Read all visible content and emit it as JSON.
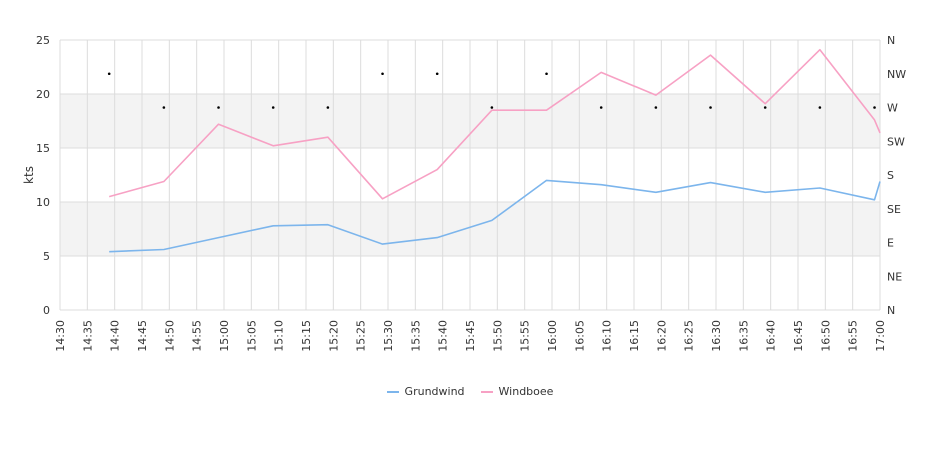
{
  "chart_data": {
    "type": "line",
    "ylabel": "kts",
    "ylim": [
      0,
      25
    ],
    "y_ticks": [
      "0",
      "5",
      "10",
      "15",
      "20",
      "25"
    ],
    "y2_ticks": [
      "N",
      "NE",
      "E",
      "SE",
      "S",
      "SW",
      "W",
      "NW",
      "N"
    ],
    "x_ticks": [
      "14:30",
      "14:35",
      "14:40",
      "14:45",
      "14:50",
      "14:55",
      "15:00",
      "15:05",
      "15:10",
      "15:15",
      "15:20",
      "15:25",
      "15:30",
      "15:35",
      "15:40",
      "15:45",
      "15:50",
      "15:55",
      "16:00",
      "16:05",
      "16:10",
      "16:15",
      "16:20",
      "16:25",
      "16:30",
      "16:35",
      "16:40",
      "16:45",
      "16:50",
      "16:55",
      "17:00"
    ],
    "xlim": [
      "14:30",
      "17:00"
    ],
    "grid": true,
    "legend_position": "bottom",
    "series": [
      {
        "name": "Grundwind",
        "color": "#7cb5ec",
        "x": [
          "14:39",
          "14:49",
          "14:59",
          "15:09",
          "15:19",
          "15:29",
          "15:39",
          "15:49",
          "15:59",
          "16:09",
          "16:19",
          "16:29",
          "16:39",
          "16:49",
          "16:59",
          "17:00"
        ],
        "values": [
          5.4,
          5.6,
          6.7,
          7.8,
          7.9,
          6.1,
          6.7,
          8.3,
          12.0,
          11.6,
          10.9,
          11.8,
          10.9,
          11.3,
          10.2,
          11.9
        ]
      },
      {
        "name": "Windboee",
        "color": "#f7a1c4",
        "x": [
          "14:39",
          "14:49",
          "14:59",
          "15:09",
          "15:19",
          "15:29",
          "15:39",
          "15:49",
          "15:59",
          "16:09",
          "16:19",
          "16:29",
          "16:39",
          "16:49",
          "16:59",
          "17:00"
        ],
        "values": [
          10.5,
          11.9,
          17.2,
          15.2,
          16.0,
          10.3,
          13.0,
          18.5,
          18.5,
          22.0,
          19.9,
          23.6,
          19.1,
          24.1,
          17.6,
          16.4
        ]
      }
    ],
    "direction": {
      "x": [
        "14:39",
        "14:49",
        "14:59",
        "15:09",
        "15:19",
        "15:29",
        "15:39",
        "15:49",
        "15:59",
        "16:09",
        "16:19",
        "16:29",
        "16:39",
        "16:49",
        "16:59",
        "17:00"
      ],
      "values": [
        "NW",
        "W",
        "W",
        "W",
        "W",
        "NW",
        "NW",
        "W",
        "NW",
        "W",
        "W",
        "W",
        "W",
        "W",
        "W",
        "W"
      ]
    }
  }
}
